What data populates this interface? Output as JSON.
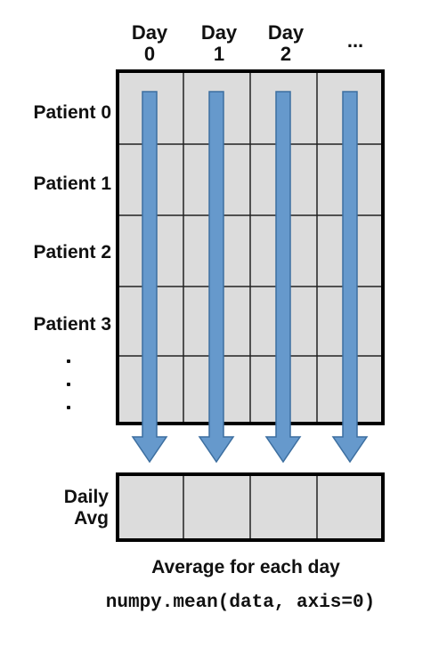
{
  "columns": [
    {
      "line1": "Day",
      "line2": "0"
    },
    {
      "line1": "Day",
      "line2": "1"
    },
    {
      "line1": "Day",
      "line2": "2"
    },
    {
      "line1": "...",
      "line2": ""
    }
  ],
  "rows": [
    "Patient 0",
    "Patient 1",
    "Patient 2",
    "Patient 3"
  ],
  "row_ellipsis": ". . .",
  "result_label": {
    "line1": "Daily",
    "line2": "Avg"
  },
  "caption": "Average for each day",
  "code": "numpy.mean(data, axis=0)",
  "colors": {
    "cell_fill": "#dcdcdc",
    "grid_line": "#222222",
    "border": "#000000",
    "arrow_fill": "#6699cc",
    "arrow_stroke": "#3d6fa0"
  }
}
